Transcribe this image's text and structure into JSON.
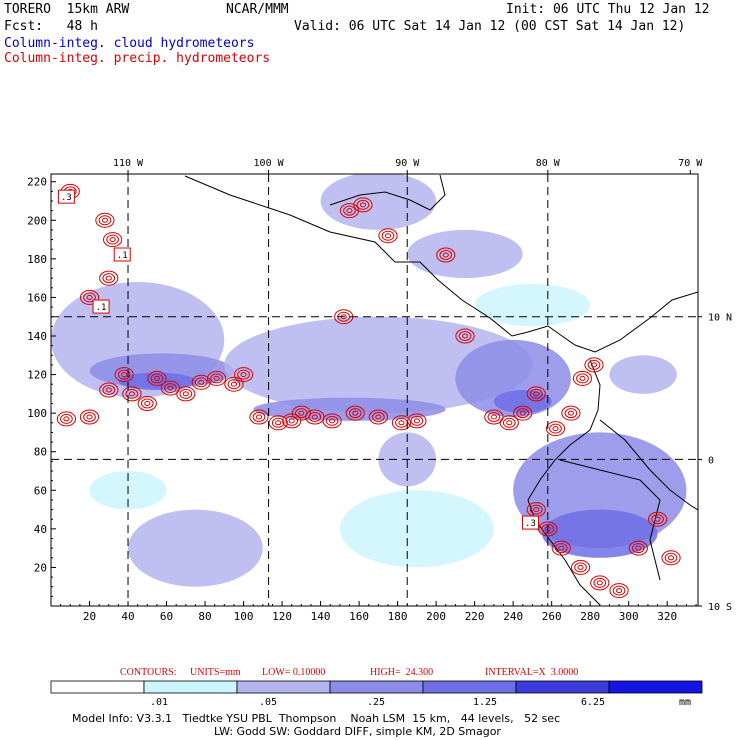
{
  "header": {
    "model": "TORERO  15km ARW",
    "org": "NCAR/MMM",
    "init": "Init: 06 UTC Thu 12 Jan 12",
    "fcst": "Fcst:   48 h",
    "valid": "Valid: 06 UTC Sat 14 Jan 12 (00 CST Sat 14 Jan 12)",
    "field1": "Column-integ. cloud hydrometeors",
    "field2": "Column-integ. precip. hydrometeors"
  },
  "chart_data": {
    "type": "heatmap",
    "x_axis": {
      "range": [
        0,
        336
      ],
      "ticks": [
        20,
        40,
        60,
        80,
        100,
        120,
        140,
        160,
        180,
        200,
        220,
        240,
        260,
        280,
        300,
        320
      ]
    },
    "y_axis": {
      "range": [
        0,
        224
      ],
      "ticks": [
        20,
        40,
        60,
        80,
        100,
        120,
        140,
        160,
        180,
        200,
        220
      ]
    },
    "lon_labels": [
      {
        "label": "110 W",
        "x": 40
      },
      {
        "label": "100 W",
        "x": 113
      },
      {
        "label": "90 W",
        "x": 185
      },
      {
        "label": "80 W",
        "x": 258
      },
      {
        "label": "70 W",
        "x": 332
      }
    ],
    "lat_labels": [
      {
        "label": "10 N",
        "y": 150
      },
      {
        "label": "0",
        "y": 76
      },
      {
        "label": "10 S",
        "y": 0
      }
    ],
    "grid_lines": {
      "x": [
        40,
        113,
        185,
        258
      ],
      "y": [
        150,
        76
      ]
    },
    "contour_labels": [
      {
        "label": ".3",
        "x": 8,
        "y": 212
      },
      {
        "label": ".1",
        "x": 37,
        "y": 182
      },
      {
        "label": ".1",
        "x": 26,
        "y": 155
      },
      {
        "label": ".3",
        "x": 249,
        "y": 43
      }
    ],
    "cloud_color_levels": [
      "#ffffff",
      "#ccf5ff",
      "#b4b4f0",
      "#8c8ce8",
      "#6e6ee6",
      "#3c3cdc",
      "#1414e6"
    ],
    "cloud_regions": [
      {
        "x": 0,
        "y": 108,
        "w": 90,
        "h": 60,
        "level": 2
      },
      {
        "x": 20,
        "y": 113,
        "w": 75,
        "h": 18,
        "level": 3
      },
      {
        "x": 35,
        "y": 112,
        "w": 40,
        "h": 9,
        "level": 4
      },
      {
        "x": 90,
        "y": 100,
        "w": 160,
        "h": 50,
        "level": 2
      },
      {
        "x": 105,
        "y": 96,
        "w": 100,
        "h": 12,
        "level": 3
      },
      {
        "x": 210,
        "y": 98,
        "w": 60,
        "h": 40,
        "level": 3
      },
      {
        "x": 230,
        "y": 100,
        "w": 30,
        "h": 12,
        "level": 4
      },
      {
        "x": 40,
        "y": 10,
        "w": 70,
        "h": 40,
        "level": 2
      },
      {
        "x": 20,
        "y": 50,
        "w": 40,
        "h": 20,
        "level": 1
      },
      {
        "x": 150,
        "y": 20,
        "w": 80,
        "h": 40,
        "level": 1
      },
      {
        "x": 170,
        "y": 62,
        "w": 30,
        "h": 28,
        "level": 2
      },
      {
        "x": 240,
        "y": 30,
        "w": 90,
        "h": 60,
        "level": 3
      },
      {
        "x": 255,
        "y": 25,
        "w": 60,
        "h": 25,
        "level": 4
      },
      {
        "x": 290,
        "y": 110,
        "w": 35,
        "h": 20,
        "level": 2
      },
      {
        "x": 140,
        "y": 195,
        "w": 60,
        "h": 30,
        "level": 2
      },
      {
        "x": 185,
        "y": 170,
        "w": 60,
        "h": 25,
        "level": 2
      },
      {
        "x": 220,
        "y": 145,
        "w": 60,
        "h": 22,
        "level": 1
      }
    ],
    "precip_cells": [
      {
        "x": 8,
        "y": 97
      },
      {
        "x": 20,
        "y": 98
      },
      {
        "x": 30,
        "y": 112
      },
      {
        "x": 38,
        "y": 120
      },
      {
        "x": 42,
        "y": 110
      },
      {
        "x": 50,
        "y": 105
      },
      {
        "x": 55,
        "y": 118
      },
      {
        "x": 62,
        "y": 113
      },
      {
        "x": 70,
        "y": 110
      },
      {
        "x": 78,
        "y": 116
      },
      {
        "x": 86,
        "y": 118
      },
      {
        "x": 95,
        "y": 115
      },
      {
        "x": 100,
        "y": 120
      },
      {
        "x": 108,
        "y": 98
      },
      {
        "x": 118,
        "y": 95
      },
      {
        "x": 125,
        "y": 96
      },
      {
        "x": 130,
        "y": 100
      },
      {
        "x": 137,
        "y": 98
      },
      {
        "x": 146,
        "y": 96
      },
      {
        "x": 158,
        "y": 100
      },
      {
        "x": 170,
        "y": 98
      },
      {
        "x": 182,
        "y": 95
      },
      {
        "x": 190,
        "y": 96
      },
      {
        "x": 230,
        "y": 98
      },
      {
        "x": 238,
        "y": 95
      },
      {
        "x": 245,
        "y": 100
      },
      {
        "x": 252,
        "y": 110
      },
      {
        "x": 262,
        "y": 92
      },
      {
        "x": 270,
        "y": 100
      },
      {
        "x": 276,
        "y": 118
      },
      {
        "x": 282,
        "y": 125
      },
      {
        "x": 252,
        "y": 50
      },
      {
        "x": 258,
        "y": 40
      },
      {
        "x": 265,
        "y": 30
      },
      {
        "x": 275,
        "y": 20
      },
      {
        "x": 285,
        "y": 12
      },
      {
        "x": 295,
        "y": 8
      },
      {
        "x": 305,
        "y": 30
      },
      {
        "x": 315,
        "y": 45
      },
      {
        "x": 322,
        "y": 25
      },
      {
        "x": 10,
        "y": 215
      },
      {
        "x": 28,
        "y": 200
      },
      {
        "x": 32,
        "y": 190
      },
      {
        "x": 30,
        "y": 170
      },
      {
        "x": 20,
        "y": 160
      },
      {
        "x": 155,
        "y": 205
      },
      {
        "x": 162,
        "y": 208
      },
      {
        "x": 175,
        "y": 192
      },
      {
        "x": 205,
        "y": 182
      },
      {
        "x": 215,
        "y": 140
      },
      {
        "x": 152,
        "y": 150
      }
    ]
  },
  "contour_info": {
    "label": "CONTOURS:",
    "units": "UNITS=mm",
    "low": "LOW= 0.10000",
    "high": "HIGH=  24.300",
    "interval": "INTERVAL=X  3.0000"
  },
  "colorbar": {
    "colors": [
      "#ffffff",
      "#ccf5ff",
      "#b4b4f0",
      "#8c8ce8",
      "#6e6ee6",
      "#3c3cdc",
      "#1414e6"
    ],
    "labels": [
      ".01",
      ".05",
      ".25",
      "1.25",
      "6.25"
    ],
    "unit": "mm"
  },
  "footer": {
    "line1": "Model Info: V3.3.1   Tiedtke YSU PBL  Thompson    Noah LSM  15 km,   44 levels,   52 sec",
    "line2": "LW: Godd SW: Goddard DIFF, simple KM, 2D Smagor"
  }
}
